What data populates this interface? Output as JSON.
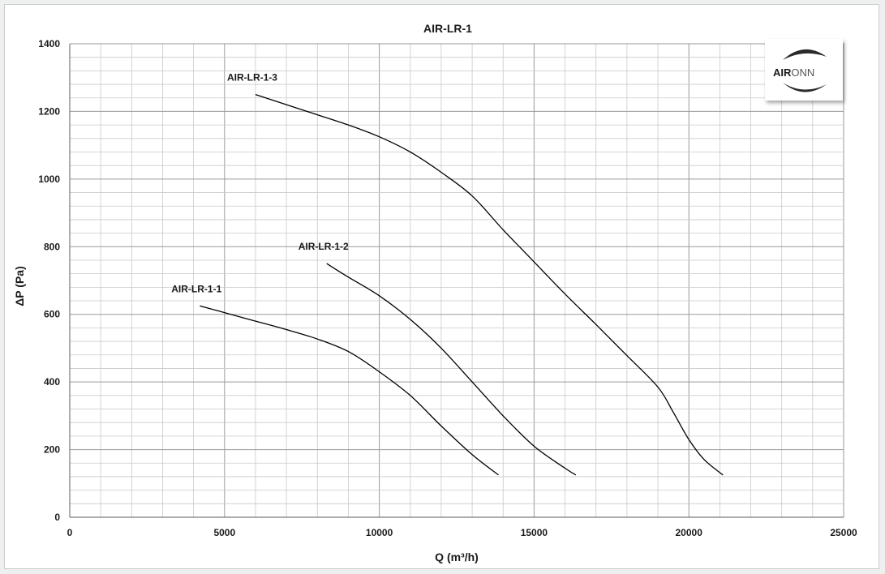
{
  "chart_data": {
    "type": "line",
    "title": "AIR-LR-1",
    "xlabel": "Q (m³/h)",
    "ylabel": "ΔP (Pa)",
    "xlim": [
      0,
      25000
    ],
    "ylim": [
      0,
      1400
    ],
    "x_major_ticks": [
      0,
      5000,
      10000,
      15000,
      20000,
      25000
    ],
    "y_major_ticks": [
      0,
      200,
      400,
      600,
      800,
      1000,
      1200,
      1400
    ],
    "grid": true,
    "minor_grid": true,
    "series": [
      {
        "name": "AIR-LR-1-1",
        "color": "#000000",
        "points": [
          [
            4200,
            625
          ],
          [
            5000,
            605
          ],
          [
            6000,
            580
          ],
          [
            7000,
            555
          ],
          [
            8000,
            527
          ],
          [
            9000,
            490
          ],
          [
            10000,
            430
          ],
          [
            11000,
            360
          ],
          [
            12000,
            270
          ],
          [
            13000,
            185
          ],
          [
            13850,
            125
          ]
        ]
      },
      {
        "name": "AIR-LR-1-2",
        "color": "#000000",
        "points": [
          [
            8300,
            750
          ],
          [
            9000,
            710
          ],
          [
            10000,
            655
          ],
          [
            11000,
            585
          ],
          [
            12000,
            500
          ],
          [
            13000,
            400
          ],
          [
            14000,
            300
          ],
          [
            15000,
            210
          ],
          [
            16000,
            145
          ],
          [
            16350,
            125
          ]
        ]
      },
      {
        "name": "AIR-LR-1-3",
        "color": "#000000",
        "points": [
          [
            6000,
            1250
          ],
          [
            7000,
            1220
          ],
          [
            8000,
            1190
          ],
          [
            9000,
            1160
          ],
          [
            10000,
            1125
          ],
          [
            11000,
            1080
          ],
          [
            12000,
            1020
          ],
          [
            13000,
            950
          ],
          [
            14000,
            850
          ],
          [
            15000,
            755
          ],
          [
            16000,
            660
          ],
          [
            17000,
            570
          ],
          [
            18000,
            478
          ],
          [
            19000,
            385
          ],
          [
            19500,
            310
          ],
          [
            20000,
            230
          ],
          [
            20500,
            170
          ],
          [
            21100,
            125
          ]
        ]
      }
    ]
  },
  "logo": {
    "text_bold": "AIR",
    "text_light": "ONN",
    "color_dark": "#1a1a1a",
    "color_light": "#555555"
  }
}
